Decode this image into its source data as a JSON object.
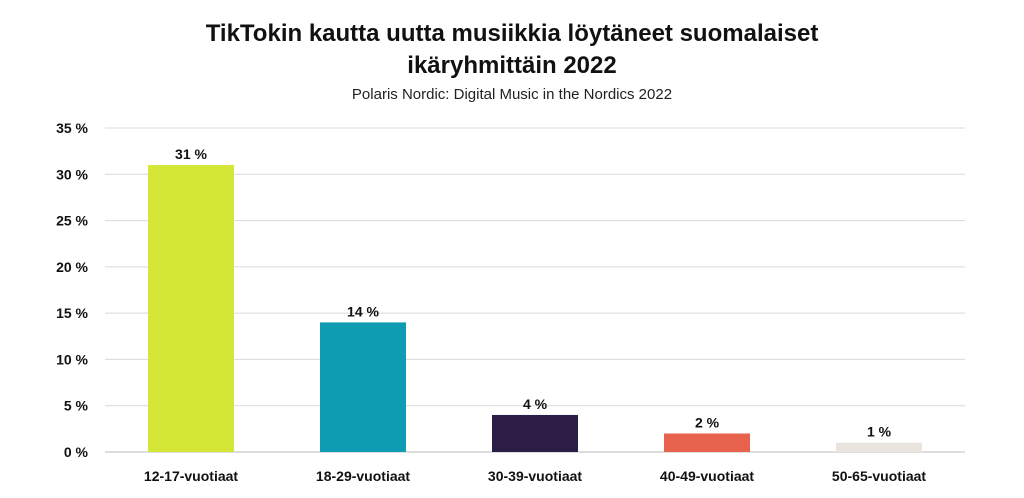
{
  "chart_data": {
    "type": "bar",
    "title_line1": "TikTokin kautta uutta musiikkia löytäneet suomalaiset",
    "title_line2": "ikäryhmittäin 2022",
    "subtitle": "Polaris Nordic: Digital Music in the Nordics 2022",
    "categories": [
      "12-17-vuotiaat",
      "18-29-vuotiaat",
      "30-39-vuotiaat",
      "40-49-vuotiaat",
      "50-65-vuotiaat"
    ],
    "values": [
      31,
      14,
      4,
      2,
      1
    ],
    "data_labels": [
      "31 %",
      "14 %",
      "4 %",
      "2 %",
      "1 %"
    ],
    "bar_colors": [
      "#d4e636",
      "#0e9cb3",
      "#2b1d45",
      "#e8634e",
      "#e9e4de"
    ],
    "y_ticks": [
      0,
      5,
      10,
      15,
      20,
      25,
      30,
      35
    ],
    "y_tick_labels": [
      "0 %",
      "5 %",
      "10 %",
      "15 %",
      "20 %",
      "25 %",
      "30 %",
      "35 %"
    ],
    "ylim": [
      0,
      35
    ],
    "grid": true,
    "legend": false
  }
}
